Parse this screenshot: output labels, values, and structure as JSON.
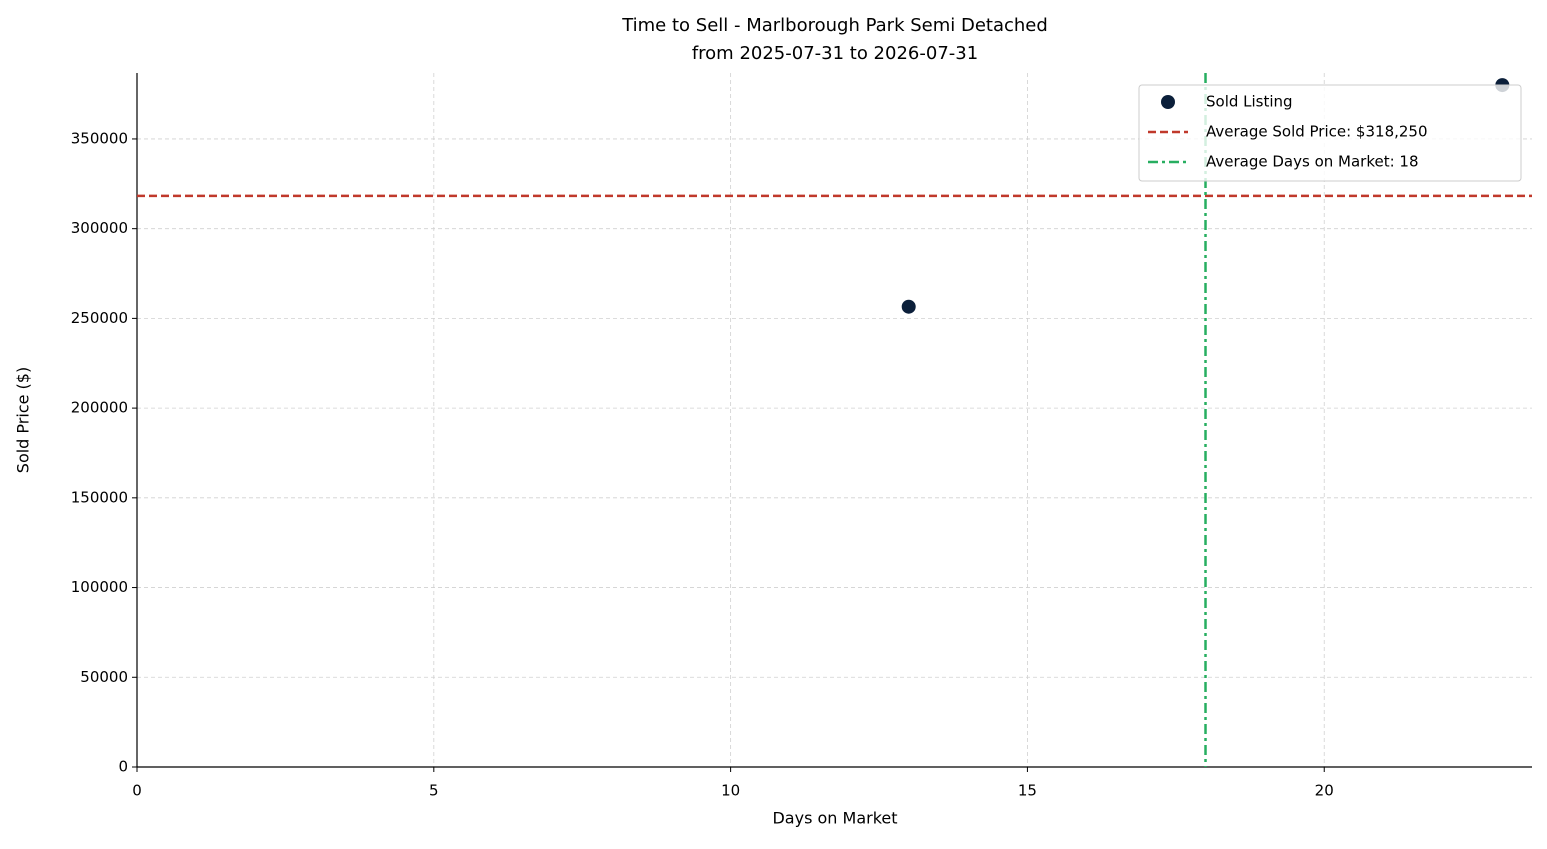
{
  "chart_data": {
    "type": "scatter",
    "title": "Time to Sell - Marlborough Park Semi Detached",
    "subtitle": "from 2025-07-31 to 2026-07-31",
    "x_label": "Days on Market",
    "y_label": "Sold Price ($)",
    "series": [
      {
        "name": "Sold Listing",
        "color": "#0b1f3a",
        "x": [
          13,
          23
        ],
        "values": [
          256500,
          380000
        ]
      }
    ],
    "reference_lines": [
      {
        "name": "Average Sold Price: $318,250",
        "axis": "y",
        "value": 318250,
        "color": "#c0392b",
        "dash": "dashed"
      },
      {
        "name": "Average Days on Market: 18",
        "axis": "x",
        "value": 18,
        "color": "#27ae60",
        "dash": "dashdot"
      }
    ],
    "xlim": [
      0,
      23.5
    ],
    "ylim": [
      0,
      386750
    ],
    "xticks": [
      0,
      5,
      10,
      15,
      20
    ],
    "yticks": [
      0,
      50000,
      100000,
      150000,
      200000,
      250000,
      300000,
      350000
    ],
    "grid": true,
    "legend": "upper right"
  }
}
